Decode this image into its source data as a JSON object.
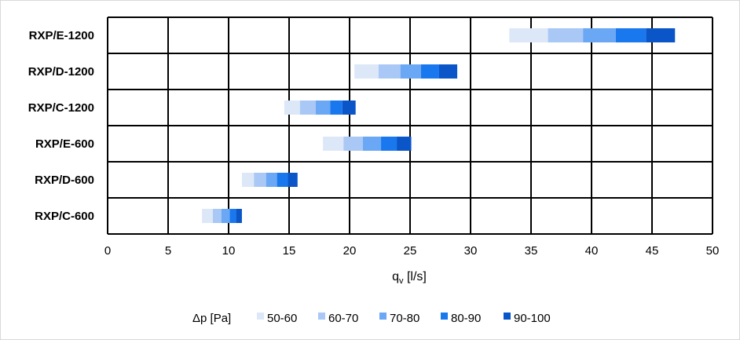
{
  "chart_data": {
    "type": "bar",
    "orientation": "horizontal-floating-stacked",
    "categories": [
      "RXP/E-1200",
      "RXP/D-1200",
      "RXP/C-1200",
      "RXP/E-600",
      "RXP/D-600",
      "RXP/C-600"
    ],
    "xlabel_main": "q",
    "xlabel_sub": "v",
    "xlabel_unit": " [l/s]",
    "xlim": [
      0,
      50
    ],
    "xticks": [
      0,
      5,
      10,
      15,
      20,
      25,
      30,
      35,
      40,
      45,
      50
    ],
    "grid": true,
    "legend": {
      "placement": "bottom",
      "title": "Δp [Pa]",
      "entries": [
        "50-60",
        "60-70",
        "70-80",
        "80-90",
        "90-100"
      ]
    },
    "colors": [
      "#dce8f8",
      "#a9c8f5",
      "#6aa7f4",
      "#1a78ef",
      "#0a55c8"
    ],
    "bars": [
      {
        "category": "RXP/E-1200",
        "bounds": [
          33.2,
          36.4,
          39.3,
          42.0,
          44.5,
          46.9
        ]
      },
      {
        "category": "RXP/D-1200",
        "bounds": [
          20.4,
          22.4,
          24.2,
          25.9,
          27.4,
          28.9
        ]
      },
      {
        "category": "RXP/C-1200",
        "bounds": [
          14.6,
          15.9,
          17.2,
          18.4,
          19.4,
          20.5
        ]
      },
      {
        "category": "RXP/E-600",
        "bounds": [
          17.8,
          19.5,
          21.1,
          22.6,
          23.9,
          25.1
        ]
      },
      {
        "category": "RXP/D-600",
        "bounds": [
          11.1,
          12.1,
          13.1,
          14.0,
          14.9,
          15.7
        ]
      },
      {
        "category": "RXP/C-600",
        "bounds": [
          7.8,
          8.7,
          9.4,
          10.1,
          10.6,
          11.1
        ]
      }
    ]
  }
}
